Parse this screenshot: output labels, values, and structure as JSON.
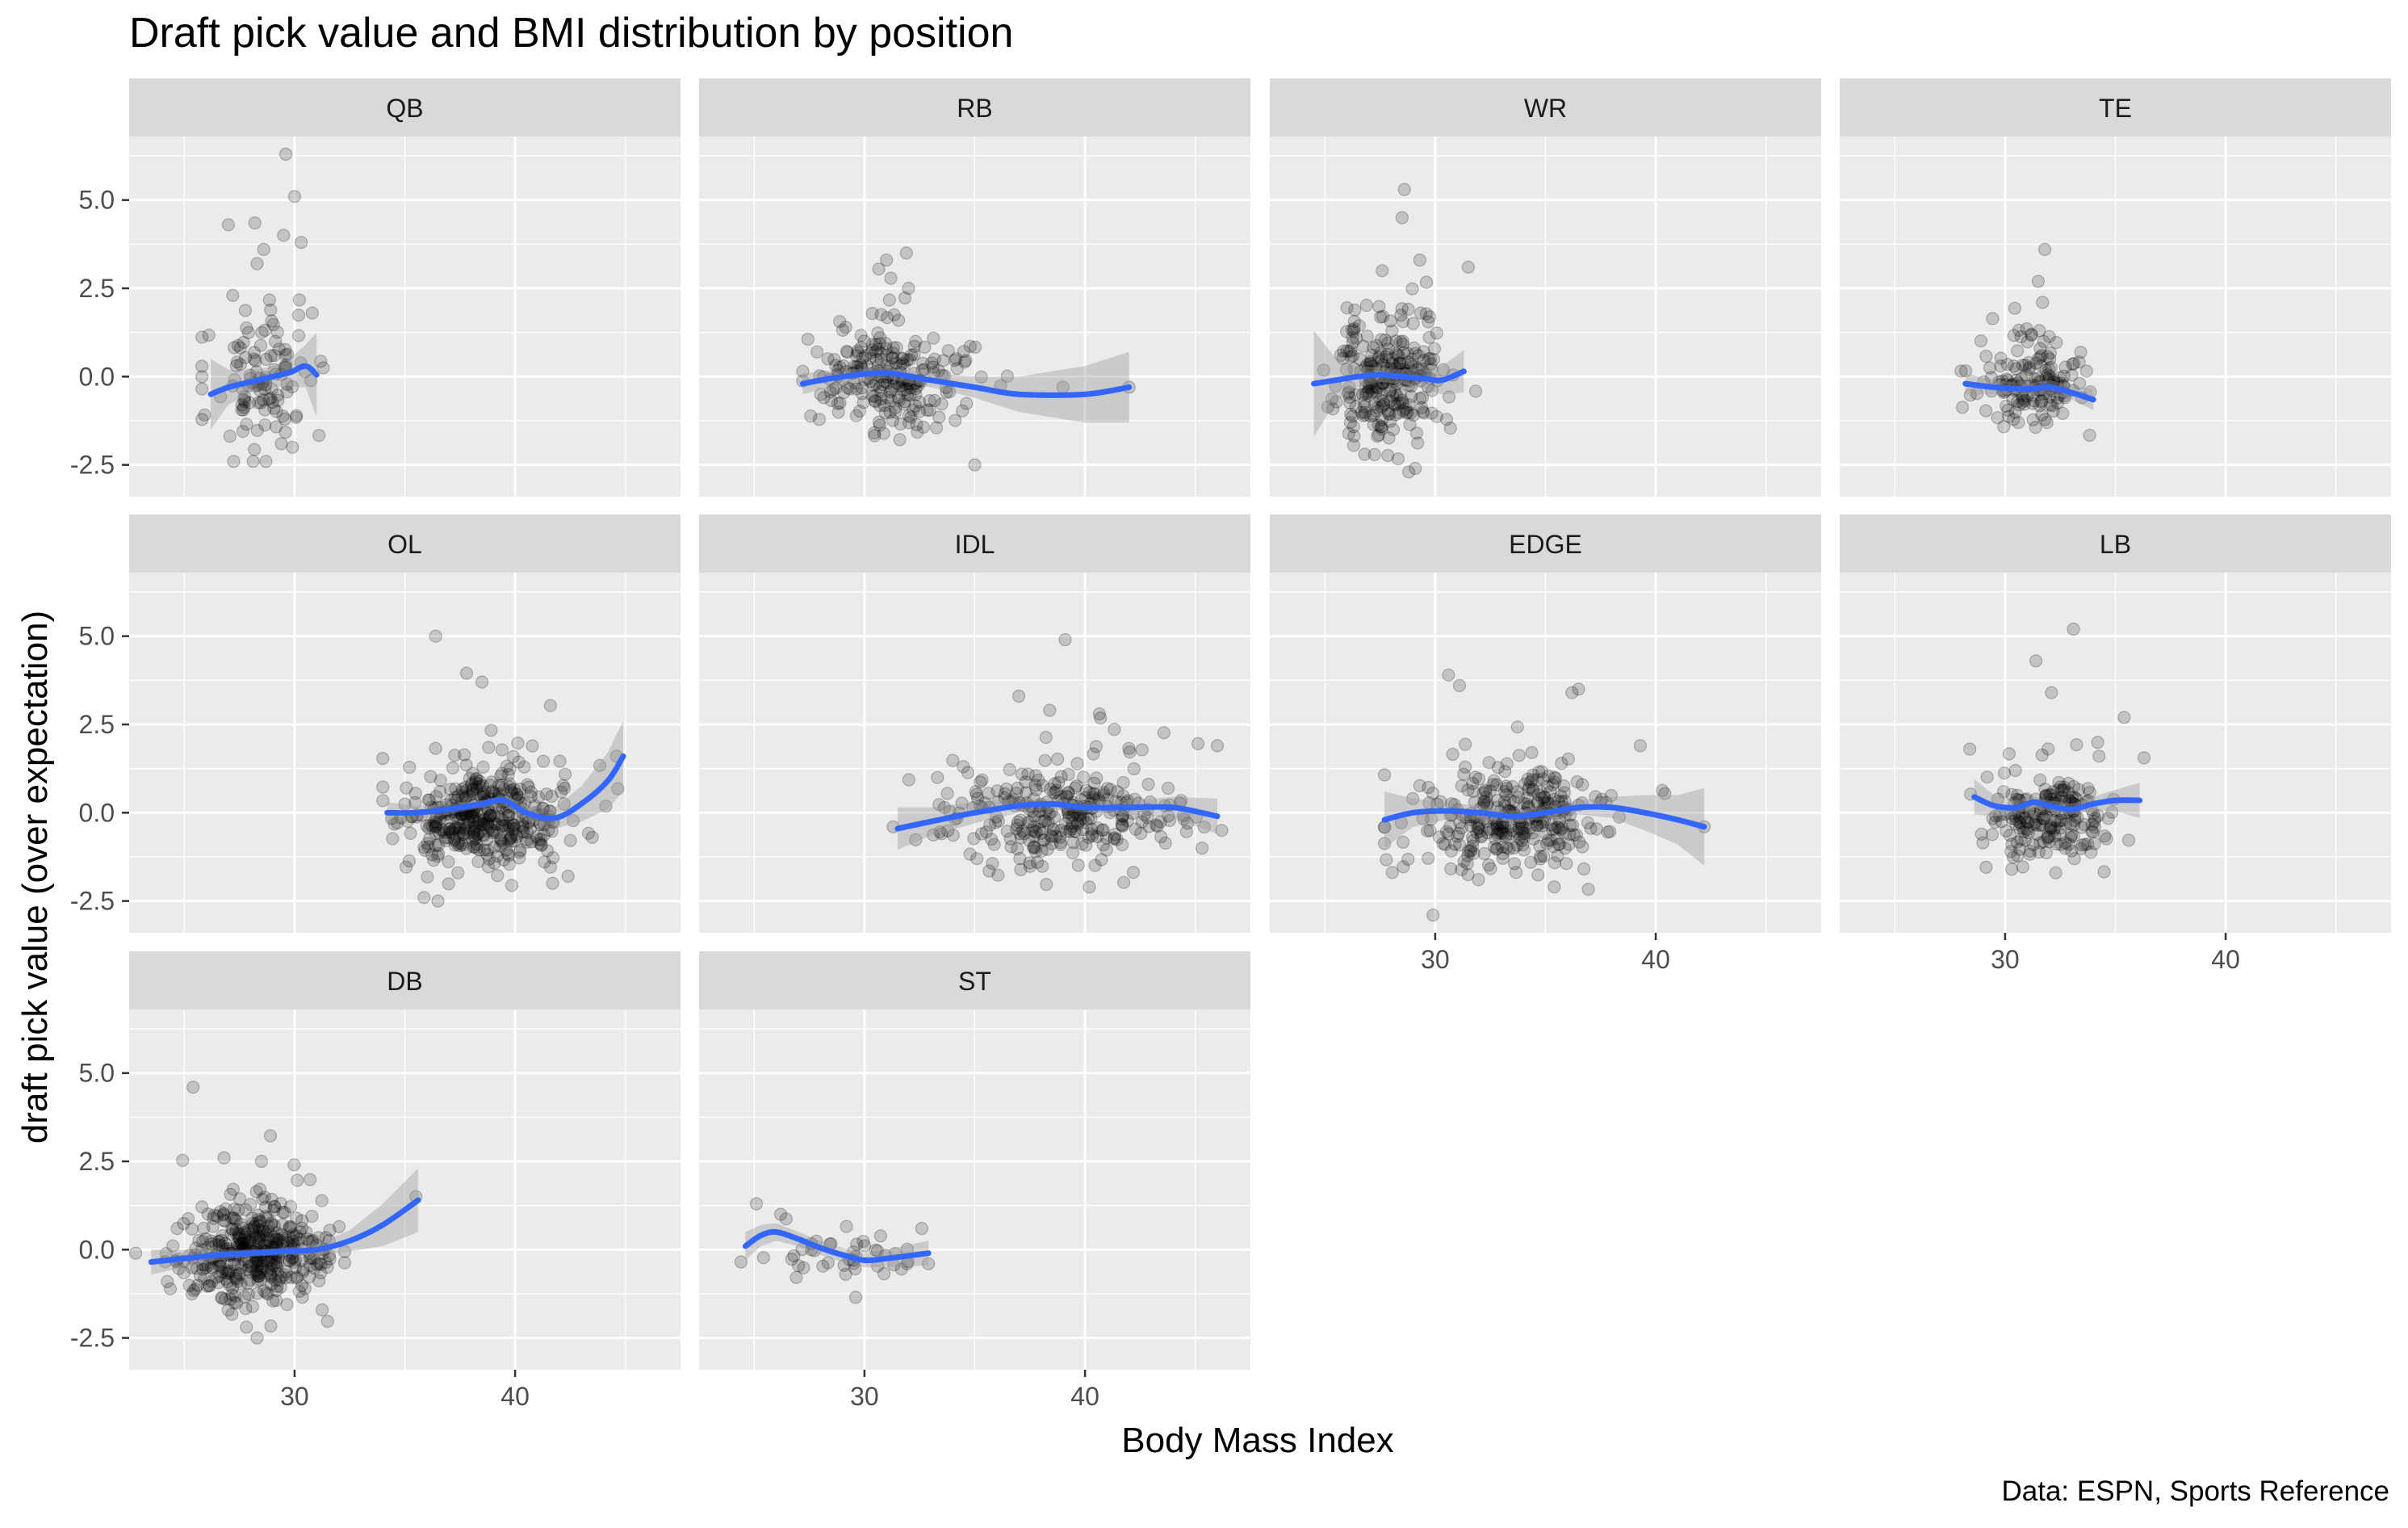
{
  "chart_data": {
    "type": "scatter",
    "title": "Draft pick value and BMI distribution by position",
    "xlabel": "Body Mass Index",
    "ylabel": "draft pick value (over expectation)",
    "caption": "Data: ESPN, Sports Reference",
    "xlim": [
      22.5,
      47.5
    ],
    "ylim": [
      -3.4,
      6.8
    ],
    "x_ticks": [
      30,
      40
    ],
    "x_tick_labels": [
      "30",
      "40"
    ],
    "y_ticks": [
      -2.5,
      0,
      2.5,
      5
    ],
    "y_tick_labels": [
      "-2.5",
      "0.0",
      "2.5",
      "5.0"
    ],
    "grid": true,
    "facet_layout": "4 columns x 3 rows",
    "colors": {
      "panel_bg": "#ebebeb",
      "strip_bg": "#d9d9d9",
      "grid": "#ffffff",
      "point": "#000000",
      "smooth_line": "#3366ff",
      "ribbon": "#999999"
    },
    "facets": [
      {
        "name": "QB",
        "bmi_range": [
          25.8,
          31.3
        ],
        "bmi_center": 28.6,
        "bmi_sd": 1.3,
        "y_sd": 1.2,
        "n": 110,
        "smooth": [
          [
            26.2,
            -0.5
          ],
          [
            27,
            -0.3
          ],
          [
            28,
            -0.15
          ],
          [
            29,
            0
          ],
          [
            29.8,
            0.12
          ],
          [
            30.5,
            0.3
          ],
          [
            31,
            0.05
          ]
        ],
        "ci_halfwidth": [
          1.0,
          0.5,
          0.3,
          0.3,
          0.4,
          0.6,
          1.2
        ],
        "notable_points": [
          [
            29.6,
            6.3
          ],
          [
            30,
            5.1
          ],
          [
            27,
            4.3
          ],
          [
            28.2,
            4.35
          ],
          [
            28.6,
            3.6
          ],
          [
            30.3,
            3.8
          ],
          [
            29.5,
            4.0
          ],
          [
            28.3,
            3.2
          ],
          [
            27.2,
            2.3
          ],
          [
            30.8,
            1.8
          ],
          [
            28.7,
            -2.4
          ],
          [
            29.9,
            -2.0
          ],
          [
            29.4,
            -1.9
          ]
        ]
      },
      {
        "name": "RB",
        "bmi_range": [
          27.2,
          42.0
        ],
        "bmi_center": 31.0,
        "bmi_sd": 1.7,
        "y_sd": 0.85,
        "n": 230,
        "smooth": [
          [
            27.2,
            -0.2
          ],
          [
            29,
            0
          ],
          [
            31,
            0.1
          ],
          [
            33,
            -0.1
          ],
          [
            35,
            -0.3
          ],
          [
            37,
            -0.5
          ],
          [
            40,
            -0.5
          ],
          [
            42,
            -0.3
          ]
        ],
        "ci_halfwidth": [
          0.3,
          0.2,
          0.15,
          0.2,
          0.3,
          0.5,
          0.8,
          1.0
        ],
        "notable_points": [
          [
            31.9,
            3.5
          ],
          [
            31,
            3.3
          ],
          [
            32,
            2.5
          ],
          [
            35,
            -2.5
          ],
          [
            39,
            -0.3
          ],
          [
            42,
            -0.3
          ]
        ]
      },
      {
        "name": "WR",
        "bmi_range": [
          24.5,
          32.0
        ],
        "bmi_center": 27.8,
        "bmi_sd": 1.2,
        "y_sd": 1.0,
        "n": 260,
        "smooth": [
          [
            24.5,
            -0.2
          ],
          [
            25.5,
            -0.1
          ],
          [
            26.5,
            0
          ],
          [
            27.5,
            0.05
          ],
          [
            28.5,
            0
          ],
          [
            29.5,
            -0.05
          ],
          [
            30.3,
            -0.1
          ],
          [
            31.3,
            0.15
          ]
        ],
        "ci_halfwidth": [
          1.5,
          0.6,
          0.3,
          0.2,
          0.2,
          0.3,
          0.4,
          0.6
        ],
        "notable_points": [
          [
            28.6,
            5.3
          ],
          [
            28.5,
            4.5
          ],
          [
            27.6,
            3.0
          ],
          [
            29.3,
            3.3
          ],
          [
            31.5,
            3.1
          ],
          [
            29.1,
            -2.6
          ],
          [
            28.8,
            -2.7
          ],
          [
            26.8,
            -2.2
          ]
        ]
      },
      {
        "name": "TE",
        "bmi_range": [
          28.0,
          34.5
        ],
        "bmi_center": 31.2,
        "bmi_sd": 1.2,
        "y_sd": 0.7,
        "n": 150,
        "smooth": [
          [
            28.2,
            -0.2
          ],
          [
            29.5,
            -0.3
          ],
          [
            31,
            -0.35
          ],
          [
            32,
            -0.3
          ],
          [
            33,
            -0.45
          ],
          [
            34,
            -0.65
          ]
        ],
        "ci_halfwidth": [
          0.3,
          0.2,
          0.15,
          0.2,
          0.2,
          0.3
        ],
        "notable_points": [
          [
            31.8,
            3.6
          ],
          [
            31.5,
            2.7
          ],
          [
            31.7,
            2.1
          ],
          [
            31.2,
            1.2
          ],
          [
            30.6,
            -1.3
          ],
          [
            31.9,
            -1.3
          ]
        ]
      },
      {
        "name": "OL",
        "bmi_range": [
          34.0,
          45.0
        ],
        "bmi_center": 38.3,
        "bmi_sd": 1.9,
        "y_sd": 0.85,
        "n": 400,
        "smooth": [
          [
            34.2,
            0
          ],
          [
            35.5,
            0
          ],
          [
            37,
            0.1
          ],
          [
            38.5,
            0.25
          ],
          [
            39.5,
            0.35
          ],
          [
            40.5,
            0
          ],
          [
            41.8,
            -0.15
          ],
          [
            43,
            0.25
          ],
          [
            44.2,
            0.9
          ],
          [
            44.9,
            1.6
          ]
        ],
        "ci_halfwidth": [
          0.3,
          0.2,
          0.15,
          0.1,
          0.15,
          0.2,
          0.3,
          0.5,
          0.8,
          1.0
        ],
        "notable_points": [
          [
            36.4,
            5.0
          ],
          [
            37.8,
            3.95
          ],
          [
            38.5,
            3.7
          ],
          [
            36.5,
            -2.5
          ],
          [
            41.7,
            -2.0
          ],
          [
            42.4,
            -1.8
          ],
          [
            43.5,
            -0.7
          ],
          [
            44.6,
            1.6
          ]
        ]
      },
      {
        "name": "IDL",
        "bmi_range": [
          31.3,
          46.2
        ],
        "bmi_center": 39.0,
        "bmi_sd": 2.7,
        "y_sd": 0.85,
        "n": 300,
        "smooth": [
          [
            31.5,
            -0.45
          ],
          [
            33,
            -0.25
          ],
          [
            35,
            0
          ],
          [
            37,
            0.2
          ],
          [
            38.5,
            0.25
          ],
          [
            40,
            0.15
          ],
          [
            42,
            0.15
          ],
          [
            44,
            0.15
          ],
          [
            46,
            -0.1
          ]
        ],
        "ci_halfwidth": [
          0.6,
          0.4,
          0.3,
          0.2,
          0.15,
          0.15,
          0.2,
          0.3,
          0.5
        ],
        "notable_points": [
          [
            39.1,
            4.9
          ],
          [
            37,
            3.3
          ],
          [
            38.4,
            2.9
          ],
          [
            35.1,
            -1.3
          ],
          [
            46,
            1.9
          ],
          [
            46.2,
            -0.5
          ],
          [
            31.3,
            -0.4
          ]
        ]
      },
      {
        "name": "EDGE",
        "bmi_range": [
          27.7,
          42.2
        ],
        "bmi_center": 33.5,
        "bmi_sd": 2.1,
        "y_sd": 0.95,
        "n": 320,
        "smooth": [
          [
            27.7,
            -0.2
          ],
          [
            29,
            0
          ],
          [
            30.5,
            0.05
          ],
          [
            32,
            0
          ],
          [
            33.5,
            -0.1
          ],
          [
            35,
            0
          ],
          [
            36.5,
            0.15
          ],
          [
            38,
            0.15
          ],
          [
            39.5,
            0
          ],
          [
            41,
            -0.2
          ],
          [
            42.2,
            -0.4
          ]
        ],
        "ci_halfwidth": [
          0.8,
          0.4,
          0.25,
          0.2,
          0.15,
          0.2,
          0.2,
          0.3,
          0.5,
          0.7,
          1.1
        ],
        "notable_points": [
          [
            29.9,
            -2.9
          ],
          [
            35.4,
            -2.1
          ],
          [
            30.6,
            3.9
          ],
          [
            31.1,
            3.6
          ],
          [
            36.5,
            3.5
          ],
          [
            36.2,
            3.4
          ],
          [
            39.3,
            1.9
          ],
          [
            42.2,
            -0.4
          ]
        ]
      },
      {
        "name": "LB",
        "bmi_range": [
          28.4,
          36.3
        ],
        "bmi_center": 32.0,
        "bmi_sd": 1.4,
        "y_sd": 0.8,
        "n": 200,
        "smooth": [
          [
            28.6,
            0.45
          ],
          [
            29.5,
            0.2
          ],
          [
            30.5,
            0.15
          ],
          [
            31.3,
            0.3
          ],
          [
            32,
            0.2
          ],
          [
            33,
            0.1
          ],
          [
            34,
            0.25
          ],
          [
            35,
            0.35
          ],
          [
            36.1,
            0.35
          ]
        ],
        "ci_halfwidth": [
          0.5,
          0.3,
          0.2,
          0.15,
          0.15,
          0.15,
          0.2,
          0.3,
          0.5
        ],
        "notable_points": [
          [
            33.1,
            5.2
          ],
          [
            31.4,
            4.3
          ],
          [
            32.1,
            3.4
          ],
          [
            28.4,
            1.8
          ],
          [
            35.4,
            2.7
          ],
          [
            32.3,
            -1.7
          ],
          [
            30.3,
            -1.6
          ]
        ]
      },
      {
        "name": "DB",
        "bmi_range": [
          22.8,
          35.6
        ],
        "bmi_center": 28.2,
        "bmi_sd": 1.6,
        "y_sd": 0.85,
        "n": 420,
        "smooth": [
          [
            23.5,
            -0.35
          ],
          [
            25,
            -0.25
          ],
          [
            26.5,
            -0.15
          ],
          [
            28,
            -0.1
          ],
          [
            29.5,
            -0.05
          ],
          [
            31,
            0
          ],
          [
            32.5,
            0.25
          ],
          [
            34,
            0.7
          ],
          [
            35.6,
            1.4
          ]
        ],
        "ci_halfwidth": [
          0.35,
          0.25,
          0.15,
          0.1,
          0.1,
          0.15,
          0.3,
          0.6,
          0.9
        ],
        "notable_points": [
          [
            25.4,
            4.6
          ],
          [
            26.8,
            2.6
          ],
          [
            28.5,
            2.5
          ],
          [
            22.8,
            -0.1
          ],
          [
            28.3,
            -2.5
          ],
          [
            35.5,
            1.5
          ]
        ]
      },
      {
        "name": "ST",
        "bmi_range": [
          24.4,
          32.9
        ],
        "bmi_center": 28.5,
        "bmi_sd": 2.2,
        "y_sd": 0.4,
        "n": 40,
        "smooth": [
          [
            24.6,
            0.1
          ],
          [
            25.3,
            0.4
          ],
          [
            26,
            0.5
          ],
          [
            27,
            0.3
          ],
          [
            28,
            0.05
          ],
          [
            29,
            -0.15
          ],
          [
            30,
            -0.3
          ],
          [
            31,
            -0.25
          ],
          [
            32.9,
            -0.1
          ]
        ],
        "ci_halfwidth": [
          0.4,
          0.3,
          0.25,
          0.2,
          0.2,
          0.2,
          0.2,
          0.25,
          0.35
        ],
        "notable_points": [
          [
            24.4,
            -0.35
          ],
          [
            25.1,
            1.3
          ],
          [
            26.2,
            1.0
          ],
          [
            29.6,
            -1.35
          ],
          [
            32.6,
            0.6
          ],
          [
            32.9,
            -0.4
          ]
        ]
      }
    ]
  }
}
